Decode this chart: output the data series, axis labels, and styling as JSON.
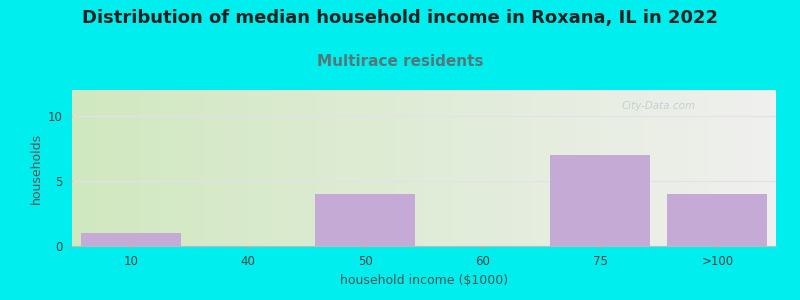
{
  "title": "Distribution of median household income in Roxana, IL in 2022",
  "subtitle": "Multirace residents",
  "xlabel": "household income ($1000)",
  "ylabel": "households",
  "categories": [
    "10",
    "40",
    "50",
    "60",
    "75",
    ">100"
  ],
  "values": [
    1,
    0,
    4,
    0,
    7,
    4
  ],
  "bar_color": "#c4aad4",
  "background_color": "#00eeee",
  "plot_bg_left": "#d0e8c0",
  "plot_bg_right": "#f0f0ee",
  "title_fontsize": 13,
  "title_color": "#222222",
  "subtitle_fontsize": 11,
  "subtitle_color": "#557777",
  "ylabel_fontsize": 9,
  "xlabel_fontsize": 9,
  "tick_fontsize": 8.5,
  "yticks": [
    0,
    5,
    10
  ],
  "ylim": [
    0,
    12
  ],
  "watermark": "City-Data.com",
  "grid_color": "#e8dded"
}
